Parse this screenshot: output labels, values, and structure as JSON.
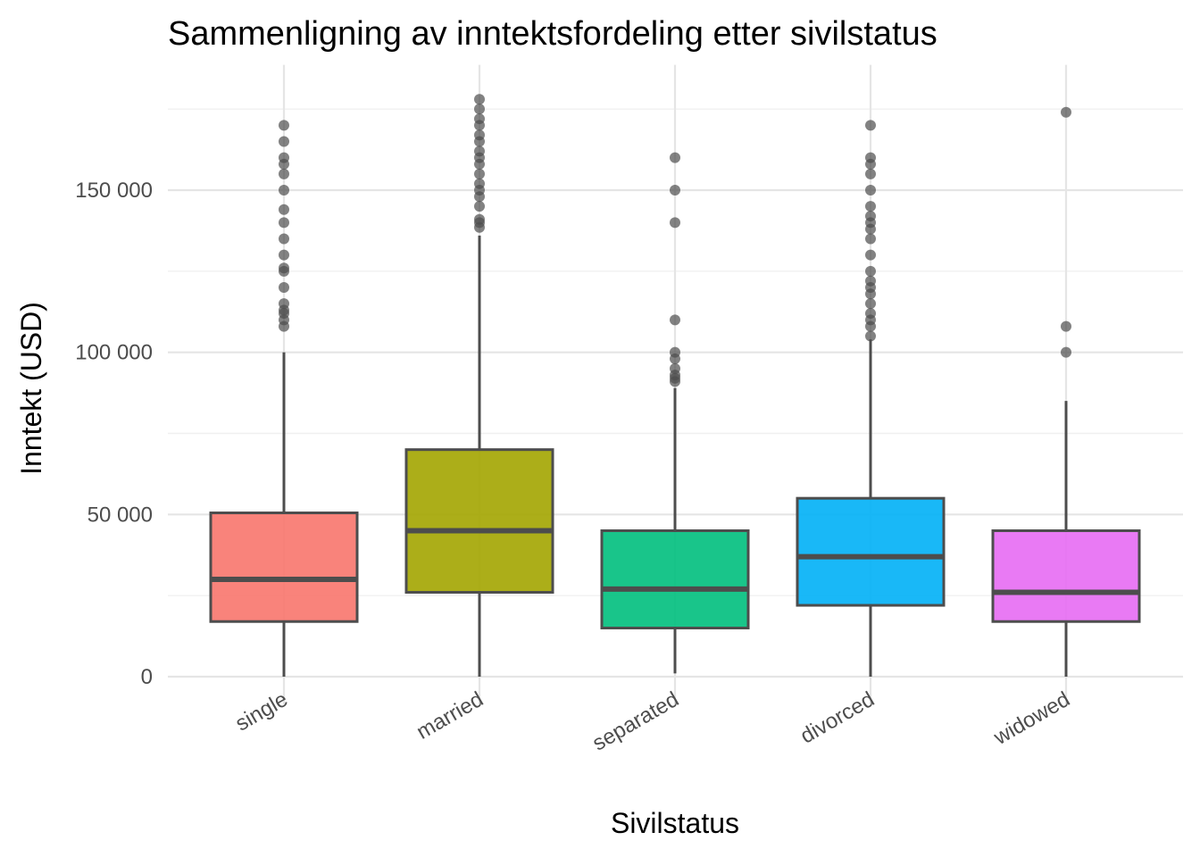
{
  "chart_data": {
    "type": "box",
    "title": "Sammenligning av inntektsfordeling etter sivilstatus",
    "xlabel": "Sivilstatus",
    "ylabel": "Inntekt (USD)",
    "ylim": [
      -7000,
      187000
    ],
    "y_ticks": [
      0,
      50000,
      100000,
      150000
    ],
    "y_tick_labels": [
      "0",
      "50 000",
      "100 000",
      "150 000"
    ],
    "grid": true,
    "legend": "none",
    "categories": [
      "single",
      "married",
      "separated",
      "divorced",
      "widowed"
    ],
    "colors": [
      "#F8766D",
      "#A3A500",
      "#00BF7D",
      "#00B0F6",
      "#E76BF3"
    ],
    "boxes": [
      {
        "category": "single",
        "whisker_low": 0,
        "q1": 17000,
        "median": 30000,
        "q3": 50500,
        "whisker_high": 100000,
        "outliers": [
          108000,
          110000,
          112000,
          113000,
          115000,
          120000,
          125000,
          126000,
          130000,
          135000,
          140000,
          144000,
          150000,
          155000,
          158000,
          160000,
          165000,
          170000
        ]
      },
      {
        "category": "married",
        "whisker_low": 0,
        "q1": 26000,
        "median": 45000,
        "q3": 70000,
        "whisker_high": 136000,
        "outliers": [
          138500,
          140000,
          141000,
          145000,
          148000,
          150000,
          152000,
          155000,
          158000,
          160000,
          162000,
          165000,
          167000,
          170000,
          172000,
          175000,
          178000
        ]
      },
      {
        "category": "separated",
        "whisker_low": 1000,
        "q1": 15000,
        "median": 27000,
        "q3": 45000,
        "whisker_high": 89000,
        "outliers": [
          91000,
          92000,
          93000,
          95000,
          98000,
          100000,
          110000,
          140000,
          150000,
          160000
        ]
      },
      {
        "category": "divorced",
        "whisker_low": 0,
        "q1": 22000,
        "median": 37000,
        "q3": 55000,
        "whisker_high": 104000,
        "outliers": [
          105000,
          108000,
          110000,
          112000,
          115000,
          118000,
          120000,
          122000,
          125000,
          130000,
          135000,
          138000,
          140000,
          142000,
          145000,
          150000,
          155000,
          158000,
          160000,
          170000
        ]
      },
      {
        "category": "widowed",
        "whisker_low": 0,
        "q1": 17000,
        "median": 26000,
        "q3": 45000,
        "whisker_high": 85000,
        "outliers": [
          100000,
          108000,
          174000
        ]
      }
    ]
  }
}
